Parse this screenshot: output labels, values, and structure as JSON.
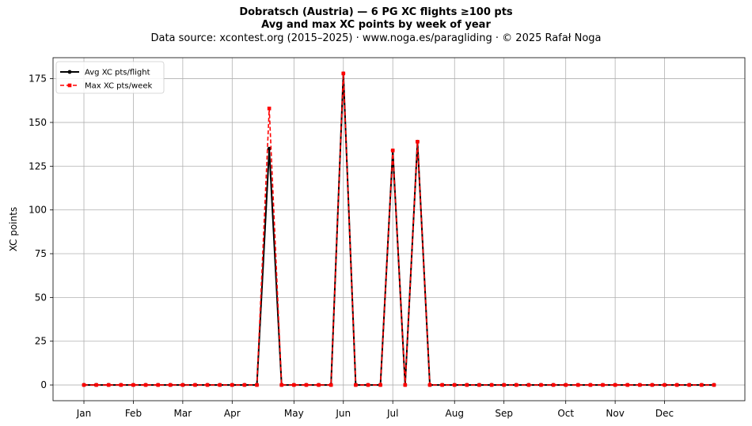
{
  "title": {
    "line1": "Dobratsch (Austria)  —  6 PG XC flights ≥100 pts",
    "line2": "Avg and max XC points by week of year",
    "line3": "Data source: xcontest.org (2015–2025)  ·  www.noga.es/paragliding  ·  © 2025 Rafał Noga"
  },
  "chart_data": {
    "type": "line",
    "xlabel": "",
    "ylabel": "XC points",
    "xlim": [
      -2.5,
      53.5
    ],
    "ylim": [
      -9,
      187
    ],
    "grid": true,
    "legend_position": "top-left",
    "x_ticks": [
      {
        "label": "Jan",
        "x": 0
      },
      {
        "label": "Feb",
        "x": 4
      },
      {
        "label": "Mar",
        "x": 8
      },
      {
        "label": "Apr",
        "x": 12
      },
      {
        "label": "May",
        "x": 17
      },
      {
        "label": "Jun",
        "x": 21
      },
      {
        "label": "Jul",
        "x": 25
      },
      {
        "label": "Aug",
        "x": 30
      },
      {
        "label": "Sep",
        "x": 34
      },
      {
        "label": "Oct",
        "x": 39
      },
      {
        "label": "Nov",
        "x": 43
      },
      {
        "label": "Dec",
        "x": 47
      }
    ],
    "y_ticks": [
      0,
      25,
      50,
      75,
      100,
      125,
      150,
      175
    ],
    "x": [
      0,
      1,
      2,
      3,
      4,
      5,
      6,
      7,
      8,
      9,
      10,
      11,
      12,
      13,
      14,
      15,
      16,
      17,
      18,
      19,
      20,
      21,
      22,
      23,
      24,
      25,
      26,
      27,
      28,
      29,
      30,
      31,
      32,
      33,
      34,
      35,
      36,
      37,
      38,
      39,
      40,
      41,
      42,
      43,
      44,
      45,
      46,
      47,
      48,
      49,
      50,
      51
    ],
    "series": [
      {
        "name": "Avg XC pts/flight",
        "color": "#000000",
        "style": "solid",
        "marker": "circle",
        "values": [
          0,
          0,
          0,
          0,
          0,
          0,
          0,
          0,
          0,
          0,
          0,
          0,
          0,
          0,
          0,
          135,
          0,
          0,
          0,
          0,
          0,
          178,
          0,
          0,
          0,
          134,
          0,
          139,
          0,
          0,
          0,
          0,
          0,
          0,
          0,
          0,
          0,
          0,
          0,
          0,
          0,
          0,
          0,
          0,
          0,
          0,
          0,
          0,
          0,
          0,
          0,
          0
        ]
      },
      {
        "name": "Max XC pts/week",
        "color": "#ff0000",
        "style": "dashed",
        "marker": "square",
        "values": [
          0,
          0,
          0,
          0,
          0,
          0,
          0,
          0,
          0,
          0,
          0,
          0,
          0,
          0,
          0,
          158,
          0,
          0,
          0,
          0,
          0,
          178,
          0,
          0,
          0,
          134,
          0,
          139,
          0,
          0,
          0,
          0,
          0,
          0,
          0,
          0,
          0,
          0,
          0,
          0,
          0,
          0,
          0,
          0,
          0,
          0,
          0,
          0,
          0,
          0,
          0,
          0
        ]
      }
    ]
  }
}
